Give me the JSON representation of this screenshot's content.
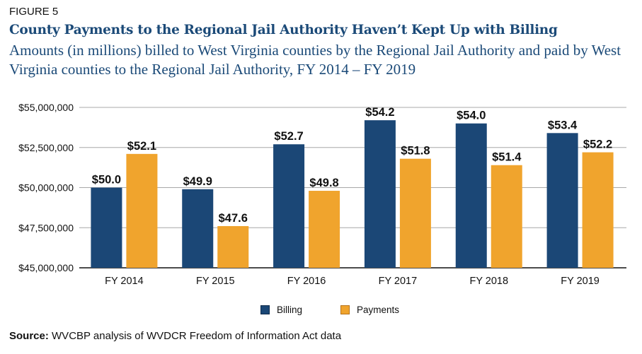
{
  "figure_label": "FIGURE 5",
  "title": "County Payments to the Regional Jail Authority Haven’t Kept Up with Billing",
  "subtitle": "Amounts (in millions) billed to West Virginia counties by the Regional Jail Authority and paid by West Virginia counties to the Regional Jail Authority, FY 2014 – FY 2019",
  "source_label": "Source:",
  "source_text": " WVCBP analysis of WVDCR Freedom of Information Act data",
  "colors": {
    "billing": "#1b4776",
    "payments": "#f0a42d",
    "grid": "#a8a8a8",
    "axis": "#111111"
  },
  "chart_data": {
    "type": "bar",
    "title": "County Payments to the Regional Jail Authority Haven’t Kept Up with Billing",
    "xlabel": "",
    "ylabel": "",
    "categories": [
      "FY 2014",
      "FY 2015",
      "FY 2016",
      "FY 2017",
      "FY 2018",
      "FY 2019"
    ],
    "series": [
      {
        "name": "Billing",
        "values": [
          50.0,
          49.9,
          52.7,
          54.2,
          54.0,
          53.4
        ],
        "labels": [
          "$50.0",
          "$49.9",
          "$52.7",
          "$54.2",
          "$54.0",
          "$53.4"
        ]
      },
      {
        "name": "Payments",
        "values": [
          52.1,
          47.6,
          49.8,
          51.8,
          51.4,
          52.2
        ],
        "labels": [
          "$52.1",
          "$47.6",
          "$49.8",
          "$51.8",
          "$51.4",
          "$52.2"
        ]
      }
    ],
    "units": "millions of dollars",
    "ylim": [
      45,
      55
    ],
    "yticks": [
      45,
      47.5,
      50,
      52.5,
      55
    ],
    "ytick_labels": [
      "$45,000,000",
      "$47,500,000",
      "$50,000,000",
      "$52,500,000",
      "$55,000,000"
    ],
    "grid": true,
    "legend": {
      "position": "bottom-center",
      "entries": [
        "Billing",
        "Payments"
      ]
    }
  }
}
